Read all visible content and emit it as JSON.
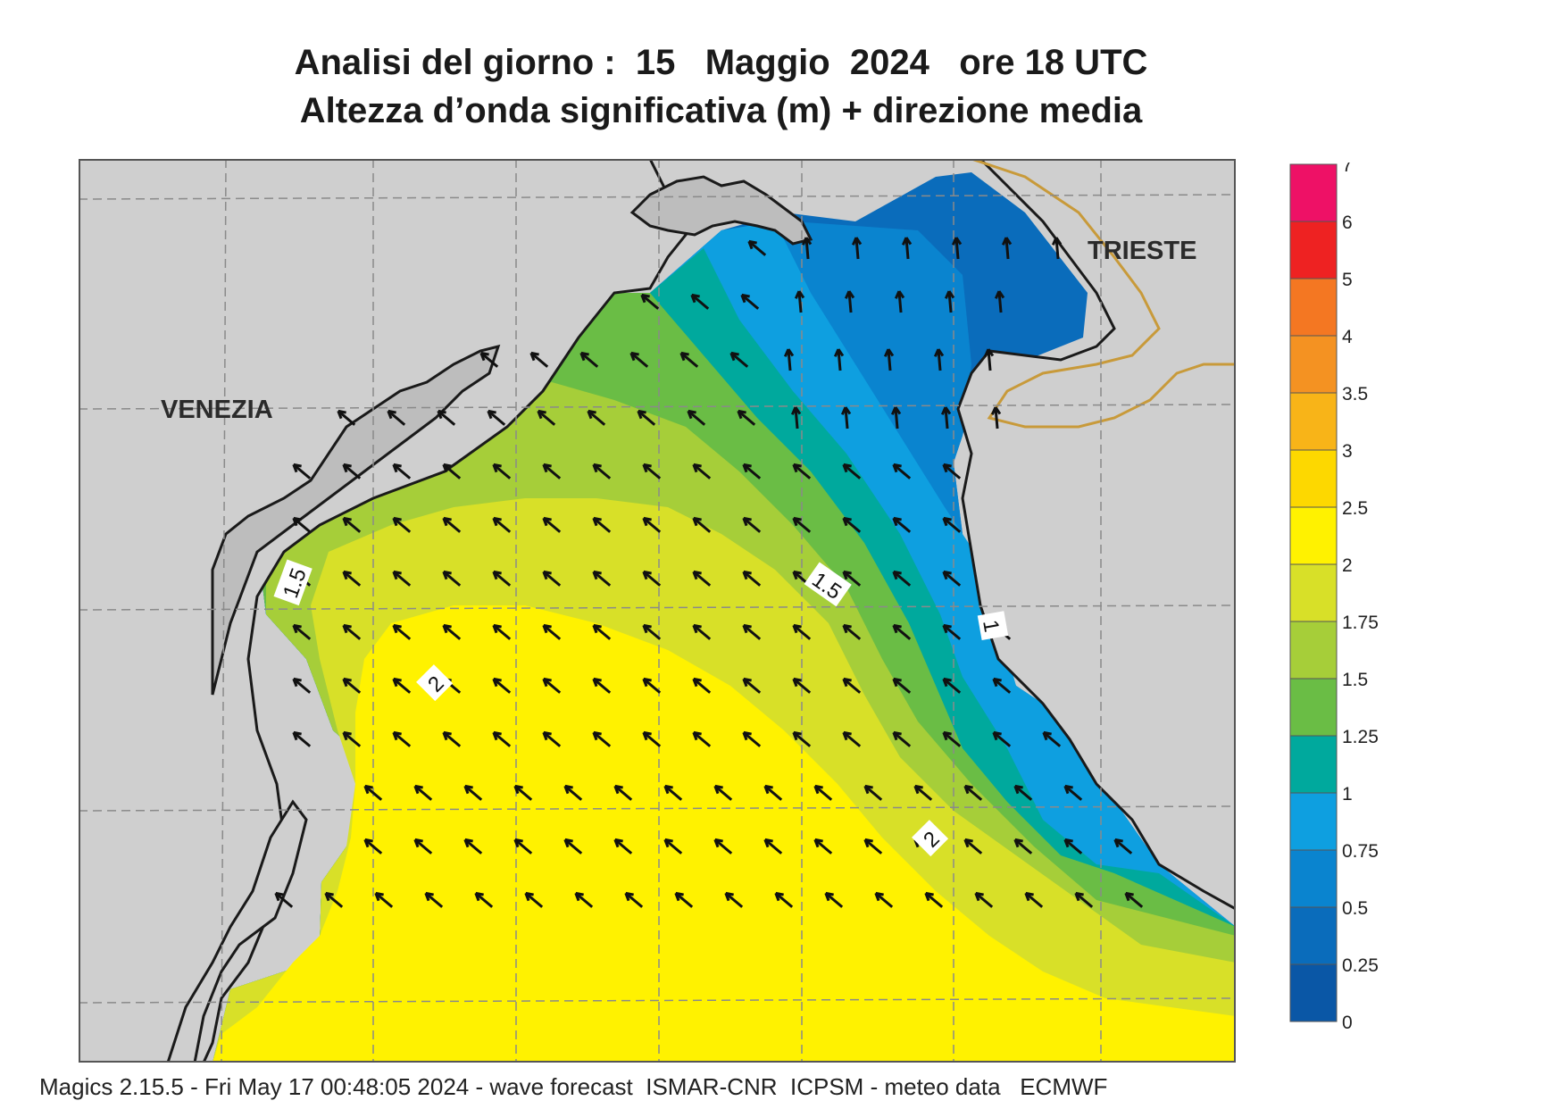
{
  "title": {
    "line1": "Analisi del giorno :  15   Maggio  2024   ore 18 UTC",
    "line2": "Altezza d’onda significativa (m) + direzione media"
  },
  "map": {
    "places": {
      "venezia": "VENEZIA",
      "trieste": "TRIESTE"
    },
    "contour_labels": [
      "1.5",
      "1.5",
      "1",
      "2",
      "2"
    ],
    "colors": {
      "land": "#cfcfcf",
      "coast": "#1a1a1a",
      "border": "#c89a3a",
      "grid": "#8a8a8a"
    },
    "arrow_direction": "north-west"
  },
  "legend": {
    "labels": [
      "7",
      "6",
      "5",
      "4",
      "3.5",
      "3",
      "2.5",
      "2",
      "1.75",
      "1.5",
      "1.25",
      "1",
      "0.75",
      "0.5",
      "0.25",
      "0"
    ],
    "colors": [
      "#ee1166",
      "#ee2222",
      "#f47722",
      "#f49222",
      "#f8b418",
      "#fdd800",
      "#fff200",
      "#d8e028",
      "#a6ce39",
      "#6abd45",
      "#00a99d",
      "#0e9fe0",
      "#0a84cf",
      "#0a6cbb",
      "#0a57a6"
    ]
  },
  "footer": "Magics 2.15.5 - Fri May 17 00:48:05 2024 - wave forecast  ISMAR-CNR  ICPSM - meteo data   ECMWF"
}
